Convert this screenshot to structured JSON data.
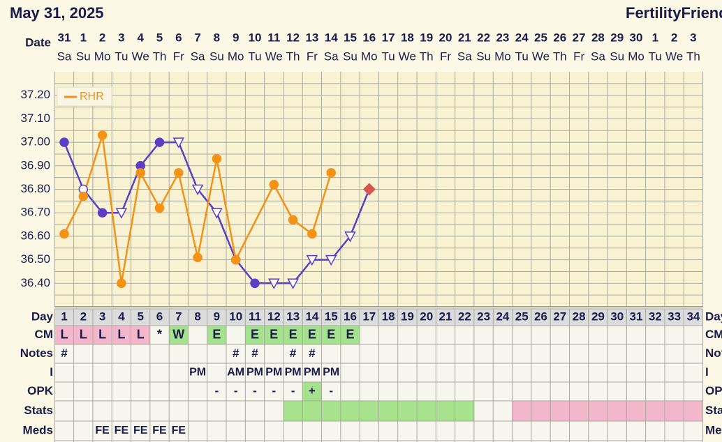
{
  "chart_data": {
    "type": "line",
    "title": "May 31, 2025",
    "brand": "FertilityFriend.c",
    "date_label": "Date",
    "rows": [
      "Day",
      "CM",
      "Notes",
      "I",
      "OPK",
      "Stats",
      "Meds"
    ],
    "dates": [
      "31",
      "1",
      "2",
      "3",
      "4",
      "5",
      "6",
      "7",
      "8",
      "9",
      "10",
      "11",
      "12",
      "13",
      "14",
      "15",
      "16",
      "17",
      "18",
      "19",
      "20",
      "21",
      "22",
      "23",
      "24",
      "25",
      "26",
      "27",
      "28",
      "29",
      "30",
      "1",
      "2",
      "3"
    ],
    "weekdays": [
      "Sa",
      "Su",
      "Mo",
      "Tu",
      "We",
      "Th",
      "Fr",
      "Sa",
      "Su",
      "Mo",
      "Tu",
      "We",
      "Th",
      "Fr",
      "Sa",
      "Su",
      "Mo",
      "Tu",
      "We",
      "Th",
      "Fr",
      "Sa",
      "Su",
      "Mo",
      "Tu",
      "We",
      "Th",
      "Fr",
      "Sa",
      "Su",
      "Mo",
      "Tu",
      "We",
      "Th"
    ],
    "days": [
      1,
      2,
      3,
      4,
      5,
      6,
      7,
      8,
      9,
      10,
      11,
      12,
      13,
      14,
      15,
      16,
      17,
      18,
      19,
      20,
      21,
      22,
      23,
      24,
      25,
      26,
      27,
      28,
      29,
      30,
      31,
      32,
      33,
      34
    ],
    "ylim": [
      36.3,
      37.3
    ],
    "yticks": [
      {
        "value": 36.4,
        "label": "36.40"
      },
      {
        "value": 36.5,
        "label": "36.50"
      },
      {
        "value": 36.6,
        "label": "36.60"
      },
      {
        "value": 36.7,
        "label": "36.70"
      },
      {
        "value": 36.8,
        "label": "36.80"
      },
      {
        "value": 36.9,
        "label": "36.90"
      },
      {
        "value": 37.0,
        "label": "37.00"
      },
      {
        "value": 37.1,
        "label": "37.10"
      },
      {
        "value": 37.2,
        "label": "37.20"
      }
    ],
    "ygrid": [
      36.35,
      36.45,
      36.55,
      36.65,
      36.75,
      36.85,
      36.95,
      37.05,
      37.15,
      37.25
    ],
    "grid": true,
    "legend": "top-left",
    "series": [
      {
        "color": "#5a3fc4",
        "diamond_color": "#d95555",
        "x": [
          1,
          2,
          3,
          4,
          5,
          6,
          7,
          8,
          9,
          10,
          11,
          12,
          13,
          14,
          15,
          16,
          17
        ],
        "values": [
          37.0,
          36.8,
          36.7,
          36.7,
          36.9,
          37.0,
          37.0,
          36.8,
          36.7,
          36.5,
          36.4,
          36.4,
          36.4,
          36.5,
          36.5,
          36.6,
          36.8
        ],
        "markers": [
          "filled",
          "open",
          "filled",
          "triangle",
          "filled",
          "filled",
          "triangle",
          "triangle",
          "triangle",
          "filled",
          "filled",
          "triangle",
          "triangle",
          "triangle",
          "triangle",
          "triangle",
          "diamond"
        ]
      },
      {
        "name": "RHR",
        "color": "#f39214",
        "x": [
          1,
          2,
          3,
          4,
          5,
          6,
          7,
          8,
          9,
          10,
          12,
          13,
          14,
          15
        ],
        "values": [
          36.61,
          36.77,
          37.03,
          36.4,
          36.87,
          36.72,
          36.87,
          36.51,
          36.93,
          36.5,
          36.82,
          36.67,
          36.61,
          36.87
        ]
      }
    ],
    "cm": [
      "L",
      "L",
      "L",
      "L",
      "L",
      "*",
      "W",
      null,
      "E",
      null,
      "E",
      "E",
      "E",
      "E",
      "E",
      "E",
      null,
      null,
      null,
      null,
      null,
      null,
      null,
      null,
      null,
      null,
      null,
      null,
      null,
      null,
      null,
      null,
      null,
      null
    ],
    "cm_colors": {
      "L": "#f3b7cb",
      "W": "#a4e28d",
      "E": "#a4e28d"
    },
    "notes": [
      "#",
      null,
      null,
      null,
      null,
      null,
      null,
      null,
      null,
      "#",
      "#",
      null,
      "#",
      "#",
      null,
      null,
      null,
      null,
      null,
      null,
      null,
      null,
      null,
      null,
      null,
      null,
      null,
      null,
      null,
      null,
      null,
      null,
      null,
      null
    ],
    "intercourse": [
      null,
      null,
      null,
      null,
      null,
      null,
      null,
      "PM",
      null,
      "AM",
      "PM",
      "PM",
      "PM",
      "PM",
      "PM",
      null,
      null,
      null,
      null,
      null,
      null,
      null,
      null,
      null,
      null,
      null,
      null,
      null,
      null,
      null,
      null,
      null,
      null,
      null
    ],
    "opk": [
      null,
      null,
      null,
      null,
      null,
      null,
      null,
      null,
      "-",
      "-",
      "-",
      "-",
      "-",
      "+",
      "-",
      null,
      null,
      null,
      null,
      null,
      null,
      null,
      null,
      null,
      null,
      null,
      null,
      null,
      null,
      null,
      null,
      null,
      null,
      null
    ],
    "opk_colors": {
      "+": "#a4e28d"
    },
    "stats": [
      {
        "from": 13,
        "to": 22,
        "color": "#a6e38c"
      },
      {
        "from": 25,
        "to": 34,
        "color": "#f3b7cb"
      }
    ],
    "meds": [
      null,
      null,
      "FE",
      "FE",
      "FE",
      "FE",
      "FE",
      null,
      null,
      null,
      null,
      null,
      null,
      null,
      null,
      null,
      null,
      null,
      null,
      null,
      null,
      null,
      null,
      null,
      null,
      null,
      null,
      null,
      null,
      null,
      null,
      null,
      null,
      null
    ]
  }
}
